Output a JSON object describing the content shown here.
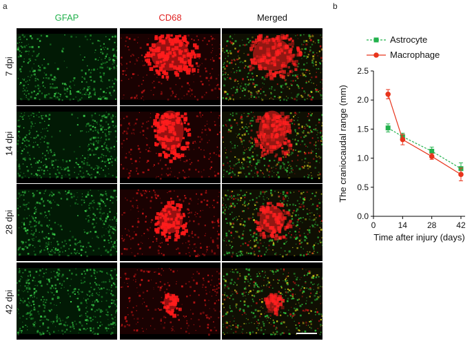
{
  "panel_a": {
    "letter": "a",
    "columns": [
      {
        "label": "GFAP",
        "color": "#22b14c"
      },
      {
        "label": "CD68",
        "color": "#e02020"
      },
      {
        "label": "Merged",
        "color": "#111111"
      }
    ],
    "rows": [
      "7 dpi",
      "14 dpi",
      "28 dpi",
      "42 dpi"
    ]
  },
  "panel_b": {
    "letter": "b"
  },
  "chart_data": {
    "type": "line",
    "xlabel": "Time after injury (days)",
    "ylabel": "The craniocaudal range (mm)",
    "x": [
      7,
      14,
      28,
      42
    ],
    "xticks": [
      "0",
      "14",
      "28",
      "42"
    ],
    "yticks": [
      "0.0",
      "0.5",
      "1.0",
      "1.5",
      "2.0",
      "2.5"
    ],
    "xlim": [
      0,
      44
    ],
    "ylim": [
      0,
      2.5
    ],
    "legend_position": "top-right",
    "series": [
      {
        "name": "Astrocyte",
        "color": "#22b14c",
        "marker": "square",
        "dash": true,
        "values": [
          1.52,
          1.37,
          1.12,
          0.82
        ],
        "errors": [
          0.07,
          0.06,
          0.07,
          0.1
        ]
      },
      {
        "name": "Macrophage",
        "color": "#e8341c",
        "marker": "circle",
        "dash": false,
        "values": [
          2.1,
          1.32,
          1.03,
          0.72
        ],
        "errors": [
          0.08,
          0.09,
          0.05,
          0.11
        ]
      }
    ]
  }
}
